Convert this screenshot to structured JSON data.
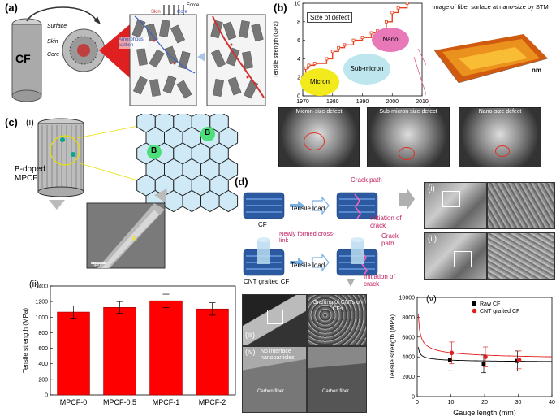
{
  "panels": {
    "a": {
      "label": "(a)",
      "cf": "CF",
      "surface": "Surface",
      "skin": "Skin",
      "core": "Core",
      "amorphous": "Amorphous carbon",
      "skin_top": "Skin",
      "core_top": "Core",
      "force": "Force"
    },
    "b": {
      "label": "(b)",
      "size_of_defect": "Size of defect",
      "nano": "Nano",
      "sub_micron": "Sub-micron",
      "micron": "Micron",
      "stm_title": "Image of fiber surface at nano-size by STM",
      "nm": "nm",
      "micron_defect": "Micron-size defect",
      "submicron_defect": "Sub-micron size defect",
      "nano_defect": "Nano-size defect"
    },
    "c": {
      "label": "(c)",
      "i": "(i)",
      "ii": "(ii)",
      "bdoped": "B-doped MPCF",
      "b": "B",
      "b_sem": "B",
      "scale": "5μm"
    },
    "d": {
      "label": "(d)",
      "crack_path": "Crack path",
      "cf": "CF",
      "tensile_load": "Tensile load",
      "initiation": "Initiation of crack",
      "newly_formed": "Newly formed cross-link",
      "cnt_grafted": "CNT grafted CF",
      "tensile_load2": "Tensile load",
      "crack_path2": "Crack path",
      "initiation2": "Initiation of crack",
      "i": "(i)",
      "ii": "(ii)",
      "iii": "(iii)",
      "iv": "(iv)",
      "v": "(v)",
      "grafting": "Grafting of CNTs on CFs",
      "no_interface": "No interface nanoparticles",
      "carbon_fiber": "Carbon fiber",
      "carbon_fiber2": "Carbon fiber"
    }
  },
  "chart_data": [
    {
      "type": "line",
      "x": [
        1970,
        1971,
        1972,
        1974,
        1978,
        1980,
        1982,
        1984,
        1987,
        1990,
        1993,
        1995,
        1998,
        2000,
        2002,
        2005
      ],
      "y": [
        2,
        3,
        3.3,
        3.5,
        4,
        4.8,
        5.2,
        5.5,
        6,
        6.3,
        6.8,
        7,
        8,
        9,
        9.5,
        10
      ],
      "xlabel": "",
      "ylabel": "Tensile strength (GPa)",
      "xticks": [
        "1970",
        "1980",
        "1990",
        "2000",
        "2010"
      ],
      "yticks": [
        "0",
        "2",
        "4",
        "6",
        "8",
        "10"
      ],
      "xlim": [
        1970,
        2010
      ],
      "ylim": [
        0,
        10
      ]
    },
    {
      "type": "bar",
      "categories": [
        "MPCF-0",
        "MPCF-0.5",
        "MPCF-1",
        "MPCF-2"
      ],
      "values": [
        1065,
        1125,
        1210,
        1105
      ],
      "errors": [
        80,
        75,
        85,
        80
      ],
      "ylabel": "Tensile strength (MPa)",
      "yticks": [
        "0",
        "200",
        "400",
        "600",
        "800",
        "1000",
        "1200",
        "1400"
      ],
      "ylim": [
        0,
        1400
      ],
      "color": "#ff0000"
    },
    {
      "type": "scatter",
      "xlabel": "Gauge length (mm)",
      "ylabel": "Tensile strength (MPa)",
      "xticks": [
        "0",
        "10",
        "20",
        "30",
        "40"
      ],
      "yticks": [
        "0",
        "2000",
        "4000",
        "6000",
        "8000",
        "10000"
      ],
      "xlim": [
        0,
        40
      ],
      "ylim": [
        0,
        10000
      ],
      "series": [
        {
          "name": "Raw CF",
          "color": "#000000",
          "x": [
            10,
            20,
            30
          ],
          "y": [
            3700,
            3300,
            3600
          ],
          "err": [
            1100,
            900,
            1000
          ]
        },
        {
          "name": "CNT grafted CF",
          "color": "#e02020",
          "x": [
            10,
            20,
            30
          ],
          "y": [
            4400,
            4000,
            3700
          ],
          "err": [
            1100,
            1000,
            900
          ]
        }
      ]
    }
  ]
}
